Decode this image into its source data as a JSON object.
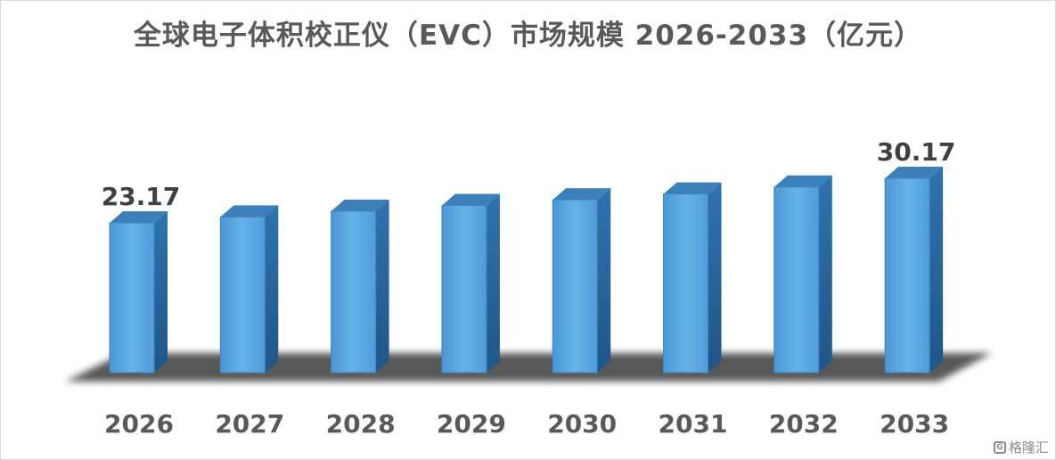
{
  "chart_data": {
    "type": "bar",
    "title": "全球电子体积校正仪（EVC）市场规模 2026-2033（亿元）",
    "categories": [
      "2026",
      "2027",
      "2028",
      "2029",
      "2030",
      "2031",
      "2032",
      "2033"
    ],
    "values": [
      23.17,
      24.1,
      25.0,
      25.9,
      26.8,
      27.7,
      28.8,
      30.17
    ],
    "data_labels": {
      "0": "23.17",
      "7": "30.17"
    },
    "ylim": [
      0,
      32
    ],
    "grid": false,
    "legend": "none",
    "style": "3d-column",
    "colors": {
      "bar_front": "#5aa8e0",
      "bar_side": "#2a6aa3",
      "bar_top": "#3d7fb8",
      "shadow": "#3a3a3a"
    }
  },
  "watermark": {
    "text": "格隆汇",
    "icon": "gelonghui-logo-icon"
  }
}
